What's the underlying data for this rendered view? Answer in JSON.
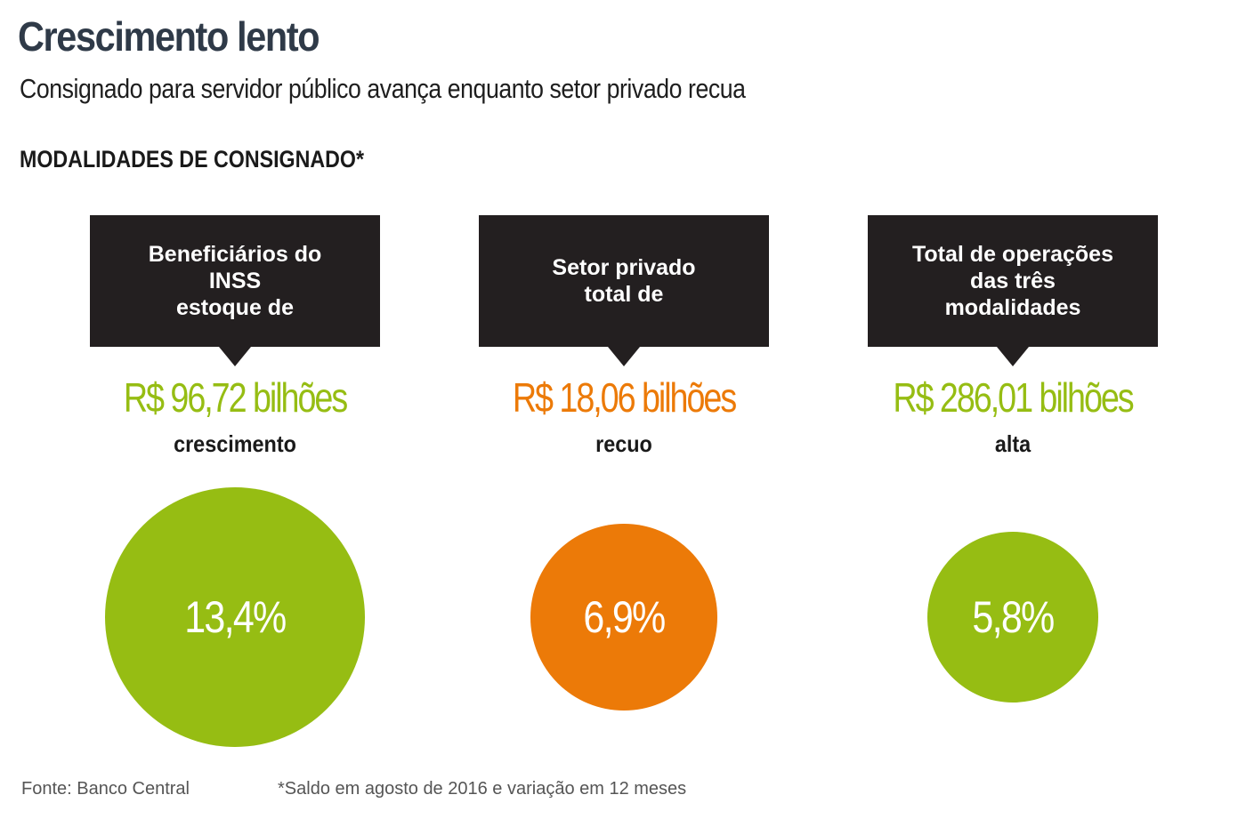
{
  "header": {
    "title": "Crescimento lento",
    "subtitle": "Consignado para servidor público avança enquanto setor privado recua",
    "section_label": "MODALIDADES DE CONSIGNADO*"
  },
  "colors": {
    "green": "#96bd13",
    "orange": "#ec7a08",
    "box": "#231f20"
  },
  "chart_data": {
    "type": "bubble",
    "title": "Crescimento lento",
    "subtitle": "Consignado para servidor público avança enquanto setor privado recua",
    "items": [
      {
        "box_lines": [
          "Beneficiários do",
          "INSS",
          "estoque de"
        ],
        "amount": "R$ 96,72 bilhões",
        "amount_value_billions": 96.72,
        "descriptor": "crescimento",
        "change_label": "13,4%",
        "change_value": 13.4,
        "color": "#96bd13"
      },
      {
        "box_lines": [
          "Setor privado",
          "total de"
        ],
        "amount": "R$ 18,06 bilhões",
        "amount_value_billions": 18.06,
        "descriptor": "recuo",
        "change_label": "6,9%",
        "change_value": 6.9,
        "color": "#ec7a08"
      },
      {
        "box_lines": [
          "Total de operações",
          "das três",
          "modalidades"
        ],
        "amount": "R$ 286,01 bilhões",
        "amount_value_billions": 286.01,
        "descriptor": "alta",
        "change_label": "5,8%",
        "change_value": 5.8,
        "color": "#96bd13"
      }
    ]
  },
  "footer": {
    "source": "Fonte: Banco Central",
    "note": "*Saldo em agosto de 2016 e variação em 12 meses"
  }
}
